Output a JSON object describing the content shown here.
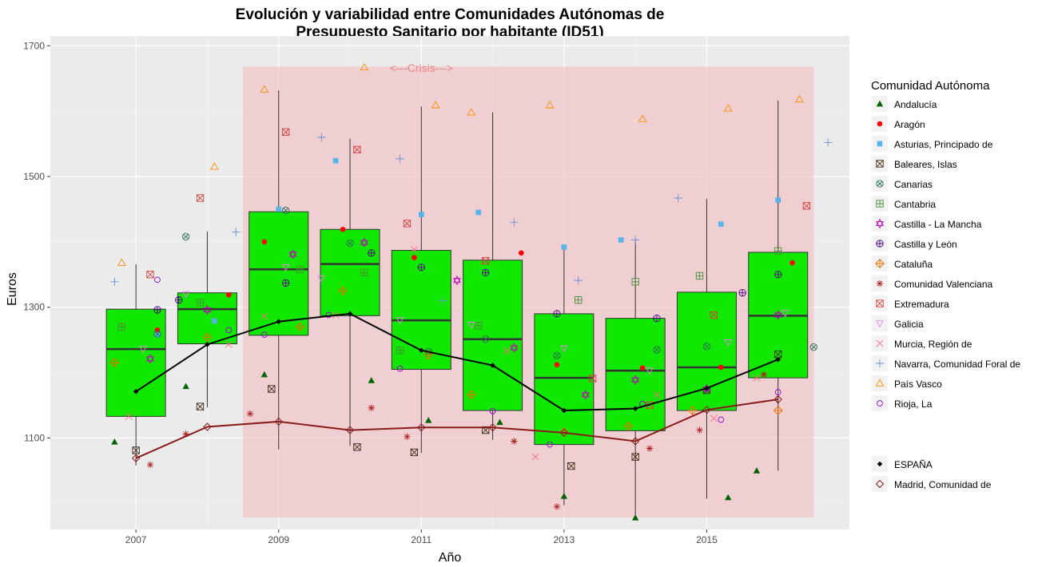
{
  "chart_data": {
    "type": "boxplot",
    "title_line1": "Evolución y variabilidad entre Comunidades Autónomas de",
    "title_line2": "Presupuesto Sanitario por habitante (ID51)",
    "xlabel": "Año",
    "ylabel": "Euros",
    "x_ticks": [
      "2007",
      "2009",
      "2011",
      "2013",
      "2015"
    ],
    "y_ticks": [
      1100,
      1300,
      1500,
      1700
    ],
    "ylim": [
      960,
      1715
    ],
    "xlim": [
      2005.8,
      2017.0
    ],
    "grid": true,
    "legend_position": "right",
    "legend_title": "Comunidad Autónoma",
    "colors": {
      "box_fill": "#10e800",
      "crisis_band": "#f2b8bc",
      "spain_line": "#000000",
      "madrid_line": "#8b1a1a",
      "panel": "#ebebeb",
      "annotation": "#f08080"
    },
    "annotation": {
      "text": "<---Crisis--->",
      "x": 2011.0,
      "y": 1666
    },
    "crisis_band": {
      "x_from": 2008.5,
      "x_to": 2016.5,
      "y_from": 978,
      "y_to": 1668
    },
    "boxes": [
      {
        "year": 2007,
        "q1": 1133,
        "median": 1236,
        "q3": 1297,
        "whisker_low": 1058,
        "whisker_high": 1366
      },
      {
        "year": 2008,
        "q1": 1244,
        "median": 1297,
        "q3": 1322,
        "whisker_low": 1147,
        "whisker_high": 1416
      },
      {
        "year": 2009,
        "q1": 1257,
        "median": 1358,
        "q3": 1446,
        "whisker_low": 1082,
        "whisker_high": 1632
      },
      {
        "year": 2010,
        "q1": 1287,
        "median": 1366,
        "q3": 1419,
        "whisker_low": 1088,
        "whisker_high": 1558
      },
      {
        "year": 2011,
        "q1": 1205,
        "median": 1280,
        "q3": 1387,
        "whisker_low": 1077,
        "whisker_high": 1607
      },
      {
        "year": 2012,
        "q1": 1142,
        "median": 1251,
        "q3": 1372,
        "whisker_low": 1097,
        "whisker_high": 1598
      },
      {
        "year": 2013,
        "q1": 1090,
        "median": 1192,
        "q3": 1290,
        "whisker_low": 997,
        "whisker_high": 1392
      },
      {
        "year": 2014,
        "q1": 1111,
        "median": 1203,
        "q3": 1283,
        "whisker_low": 978,
        "whisker_high": 1402
      },
      {
        "year": 2015,
        "q1": 1142,
        "median": 1208,
        "q3": 1323,
        "whisker_low": 1007,
        "whisker_high": 1466
      },
      {
        "year": 2016,
        "q1": 1192,
        "median": 1287,
        "q3": 1384,
        "whisker_low": 1050,
        "whisker_high": 1616
      }
    ],
    "lines": [
      {
        "name": "ESPAÑA",
        "color": "#000000",
        "shape": "diamond-filled",
        "x": [
          2007,
          2008,
          2009,
          2010,
          2011,
          2012,
          2013,
          2014,
          2015,
          2016
        ],
        "y": [
          1171,
          1243,
          1278,
          1290,
          1234,
          1211,
          1142,
          1145,
          1176,
          1220
        ]
      },
      {
        "name": "Madrid, Comunidad de",
        "color": "#8b1a1a",
        "shape": "diamond-open",
        "x": [
          2007,
          2008,
          2009,
          2010,
          2011,
          2012,
          2013,
          2014,
          2015,
          2016
        ],
        "y": [
          1069,
          1117,
          1125,
          1112,
          1116,
          1116,
          1108,
          1095,
          1143,
          1159
        ]
      }
    ],
    "series": [
      {
        "name": "Andalucía",
        "color": "#006400",
        "shape": "triangle-filled",
        "points": [
          [
            2006.7,
            1094
          ],
          [
            2007.7,
            1179
          ],
          [
            2008.8,
            1197
          ],
          [
            2010.3,
            1188
          ],
          [
            2011.1,
            1127
          ],
          [
            2012.1,
            1124
          ],
          [
            2013.0,
            1011
          ],
          [
            2014.0,
            978
          ],
          [
            2015.3,
            1009
          ],
          [
            2015.7,
            1050
          ]
        ]
      },
      {
        "name": "Aragón",
        "color": "#ff0000",
        "shape": "circle-filled",
        "points": [
          [
            2007.3,
            1265
          ],
          [
            2008.3,
            1319
          ],
          [
            2008.8,
            1400
          ],
          [
            2009.9,
            1419
          ],
          [
            2010.9,
            1376
          ],
          [
            2012.4,
            1383
          ],
          [
            2012.9,
            1212
          ],
          [
            2014.1,
            1207
          ],
          [
            2015.2,
            1208
          ],
          [
            2016.2,
            1368
          ]
        ]
      },
      {
        "name": "Asturias, Principado de",
        "color": "#56b4e9",
        "shape": "square-filled",
        "points": [
          [
            2007.3,
            1258
          ],
          [
            2008.1,
            1279
          ],
          [
            2009.0,
            1450
          ],
          [
            2009.8,
            1524
          ],
          [
            2011.0,
            1442
          ],
          [
            2011.8,
            1445
          ],
          [
            2013.0,
            1392
          ],
          [
            2013.8,
            1403
          ],
          [
            2015.2,
            1427
          ],
          [
            2016.0,
            1464
          ]
        ]
      },
      {
        "name": "Baleares, Islas",
        "color": "#3b2a10",
        "shape": "square-x",
        "points": [
          [
            2007.0,
            1081
          ],
          [
            2007.9,
            1148
          ],
          [
            2008.9,
            1175
          ],
          [
            2010.1,
            1086
          ],
          [
            2010.9,
            1078
          ],
          [
            2011.9,
            1112
          ],
          [
            2013.1,
            1057
          ],
          [
            2014.0,
            1071
          ],
          [
            2015.0,
            1173
          ],
          [
            2016.0,
            1228
          ]
        ]
      },
      {
        "name": "Canarias",
        "color": "#2a6b5a",
        "shape": "circle-x",
        "points": [
          [
            2007.3,
            1259
          ],
          [
            2007.7,
            1408
          ],
          [
            2009.1,
            1448
          ],
          [
            2010.0,
            1398
          ],
          [
            2011.1,
            1232
          ],
          [
            2011.9,
            1251
          ],
          [
            2012.9,
            1226
          ],
          [
            2014.3,
            1235
          ],
          [
            2015.0,
            1240
          ],
          [
            2016.5,
            1239
          ]
        ]
      },
      {
        "name": "Cantabria",
        "color": "#4a8c3a",
        "shape": "square-plus",
        "points": [
          [
            2006.8,
            1270
          ],
          [
            2007.9,
            1307
          ],
          [
            2009.3,
            1358
          ],
          [
            2010.2,
            1353
          ],
          [
            2010.7,
            1234
          ],
          [
            2011.8,
            1272
          ],
          [
            2013.2,
            1311
          ],
          [
            2014.0,
            1339
          ],
          [
            2014.9,
            1348
          ],
          [
            2016.0,
            1386
          ]
        ]
      },
      {
        "name": "Castilla - La Mancha",
        "color": "#c000c0",
        "shape": "star-of-david",
        "points": [
          [
            2007.2,
            1221
          ],
          [
            2008.0,
            1296
          ],
          [
            2009.2,
            1381
          ],
          [
            2010.2,
            1399
          ],
          [
            2011.5,
            1341
          ],
          [
            2012.3,
            1238
          ],
          [
            2013.3,
            1166
          ],
          [
            2014.0,
            1189
          ],
          [
            2015.0,
            1175
          ],
          [
            2016.0,
            1288
          ]
        ]
      },
      {
        "name": "Castilla y León",
        "color": "#4b0082",
        "shape": "circle-plus",
        "points": [
          [
            2007.3,
            1296
          ],
          [
            2007.6,
            1311
          ],
          [
            2009.1,
            1337
          ],
          [
            2010.3,
            1383
          ],
          [
            2011.0,
            1361
          ],
          [
            2011.9,
            1353
          ],
          [
            2012.9,
            1290
          ],
          [
            2014.3,
            1283
          ],
          [
            2015.5,
            1322
          ],
          [
            2016.0,
            1350
          ]
        ]
      },
      {
        "name": "Cataluña",
        "color": "#e07000",
        "shape": "circle-diamond",
        "points": [
          [
            2006.7,
            1215
          ],
          [
            2008.0,
            1254
          ],
          [
            2009.3,
            1270
          ],
          [
            2009.9,
            1325
          ],
          [
            2011.1,
            1227
          ],
          [
            2011.7,
            1166
          ],
          [
            2013.0,
            1109
          ],
          [
            2013.9,
            1118
          ],
          [
            2014.8,
            1142
          ],
          [
            2016.0,
            1142
          ]
        ]
      },
      {
        "name": "Comunidad Valenciana",
        "color": "#b22222",
        "shape": "asterisk",
        "points": [
          [
            2007.2,
            1059
          ],
          [
            2007.7,
            1106
          ],
          [
            2008.6,
            1137
          ],
          [
            2010.3,
            1146
          ],
          [
            2010.8,
            1102
          ],
          [
            2012.3,
            1095
          ],
          [
            2012.9,
            995
          ],
          [
            2014.2,
            1084
          ],
          [
            2014.9,
            1112
          ],
          [
            2015.8,
            1197
          ]
        ]
      },
      {
        "name": "Extremadura",
        "color": "#d24040",
        "shape": "square-cross",
        "points": [
          [
            2007.2,
            1350
          ],
          [
            2007.9,
            1467
          ],
          [
            2009.1,
            1568
          ],
          [
            2010.1,
            1541
          ],
          [
            2010.8,
            1428
          ],
          [
            2011.9,
            1371
          ],
          [
            2013.4,
            1191
          ],
          [
            2014.2,
            1150
          ],
          [
            2015.1,
            1288
          ],
          [
            2016.4,
            1455
          ]
        ]
      },
      {
        "name": "Galicia",
        "color": "#ee82ee",
        "shape": "triangle-down",
        "points": [
          [
            2007.1,
            1236
          ],
          [
            2007.7,
            1320
          ],
          [
            2009.1,
            1361
          ],
          [
            2009.6,
            1344
          ],
          [
            2010.7,
            1280
          ],
          [
            2011.7,
            1273
          ],
          [
            2013.0,
            1237
          ],
          [
            2014.2,
            1203
          ],
          [
            2015.3,
            1246
          ],
          [
            2016.1,
            1291
          ]
        ]
      },
      {
        "name": "Murcia, Región de",
        "color": "#ff6b81",
        "shape": "cross",
        "points": [
          [
            2006.9,
            1133
          ],
          [
            2008.3,
            1243
          ],
          [
            2008.8,
            1286
          ],
          [
            2009.8,
            1288
          ],
          [
            2010.9,
            1388
          ],
          [
            2012.2,
            1233
          ],
          [
            2012.6,
            1071
          ],
          [
            2014.3,
            1166
          ],
          [
            2015.1,
            1130
          ],
          [
            2015.7,
            1192
          ]
        ]
      },
      {
        "name": "Navarra, Comunidad Foral de",
        "color": "#6a8fd4",
        "shape": "plus",
        "points": [
          [
            2006.7,
            1339
          ],
          [
            2008.4,
            1415
          ],
          [
            2009.6,
            1560
          ],
          [
            2010.7,
            1527
          ],
          [
            2011.3,
            1310
          ],
          [
            2012.3,
            1430
          ],
          [
            2013.2,
            1341
          ],
          [
            2014.0,
            1403
          ],
          [
            2014.6,
            1467
          ],
          [
            2016.7,
            1552
          ]
        ]
      },
      {
        "name": "País Vasco",
        "color": "#ff8c00",
        "shape": "triangle-open",
        "points": [
          [
            2006.8,
            1368
          ],
          [
            2008.1,
            1515
          ],
          [
            2008.8,
            1633
          ],
          [
            2010.2,
            1667
          ],
          [
            2011.2,
            1609
          ],
          [
            2011.7,
            1598
          ],
          [
            2012.8,
            1609
          ],
          [
            2014.1,
            1588
          ],
          [
            2015.3,
            1604
          ],
          [
            2016.3,
            1618
          ]
        ]
      },
      {
        "name": "Rioja, La",
        "color": "#9400d3",
        "shape": "circle-open",
        "points": [
          [
            2007.3,
            1342
          ],
          [
            2008.3,
            1265
          ],
          [
            2008.8,
            1258
          ],
          [
            2009.7,
            1288
          ],
          [
            2010.7,
            1206
          ],
          [
            2012.0,
            1141
          ],
          [
            2012.8,
            1090
          ],
          [
            2014.1,
            1152
          ],
          [
            2015.2,
            1128
          ],
          [
            2016.0,
            1170
          ]
        ]
      }
    ]
  }
}
